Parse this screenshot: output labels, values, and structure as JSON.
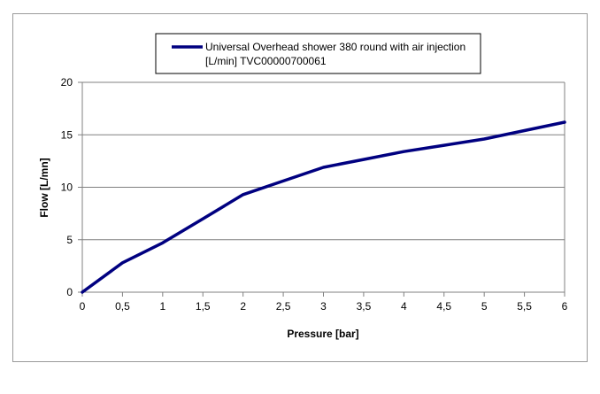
{
  "chart_data": {
    "type": "line",
    "title": "",
    "xlabel": "Pressure [bar]",
    "ylabel": "Flow [L/mn]",
    "xlim": [
      0,
      6
    ],
    "ylim": [
      0,
      20
    ],
    "xticks": [
      "0",
      "0,5",
      "1",
      "1,5",
      "2",
      "2,5",
      "3",
      "3,5",
      "4",
      "4,5",
      "5",
      "5,5",
      "6"
    ],
    "yticks": [
      "0",
      "5",
      "10",
      "15",
      "20"
    ],
    "grid": "horizontal",
    "legend_position": "top",
    "series": [
      {
        "name": "Universal Overhead shower 380 round with air injection [L/min] TVC00000700061",
        "legend_lines": [
          "Universal Overhead shower 380 round with air injection",
          "[L/min] TVC00000700061"
        ],
        "color": "#000080",
        "x": [
          0,
          0.5,
          1,
          1.5,
          2,
          2.5,
          3,
          3.5,
          4,
          4.5,
          5,
          5.5,
          6
        ],
        "y": [
          0,
          2.8,
          4.7,
          7.0,
          9.3,
          10.6,
          11.9,
          12.65,
          13.4,
          14.0,
          14.6,
          15.4,
          16.2
        ]
      }
    ]
  }
}
